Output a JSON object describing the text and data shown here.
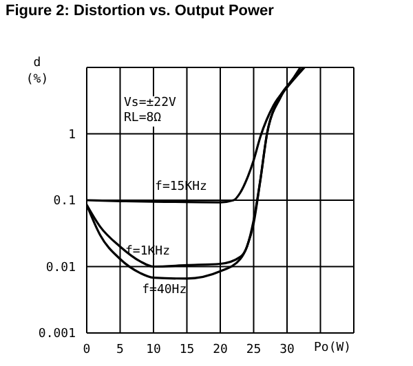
{
  "chart_data": {
    "type": "line",
    "title": "Figure 2: Distortion vs. Output Power",
    "xlabel": "Po(W)",
    "ylabel": "d (%)",
    "annotations": [
      "Vs=±22V",
      "RL=8Ω"
    ],
    "log": "y",
    "grid": true,
    "marker": "none",
    "line_style": "solid",
    "xlim": [
      0,
      40
    ],
    "xticks": [
      0,
      5,
      10,
      15,
      20,
      25,
      30,
      {
        "value": 35,
        "label": null
      }
    ],
    "ylim": [
      0.001,
      10
    ],
    "yticks": [
      0.001,
      0.01,
      0.1,
      1,
      {
        "value": 10,
        "label": null
      }
    ],
    "series": [
      {
        "name": "f=15KHz",
        "color": "#000000",
        "x": [
          0,
          5,
          10,
          15,
          20,
          22,
          23,
          24,
          25,
          26,
          28,
          30,
          32.6
        ],
        "values": [
          0.1,
          0.097,
          0.095,
          0.094,
          0.093,
          0.1,
          0.13,
          0.21,
          0.4,
          0.9,
          2.7,
          5,
          10
        ]
      },
      {
        "name": "f=1KHz",
        "color": "#000000",
        "x": [
          0,
          2,
          5,
          8,
          10,
          15,
          20,
          23,
          24,
          25,
          26,
          27,
          28.5,
          30.5,
          32.5
        ],
        "values": [
          0.085,
          0.04,
          0.02,
          0.012,
          0.01,
          0.0105,
          0.011,
          0.014,
          0.02,
          0.05,
          0.2,
          1,
          3,
          6,
          10
        ]
      },
      {
        "name": "f=40Hz",
        "color": "#000000",
        "x": [
          0,
          2,
          5,
          8,
          10,
          15,
          20,
          23,
          24,
          25,
          26,
          27,
          29,
          31,
          32
        ],
        "values": [
          0.085,
          0.03,
          0.013,
          0.008,
          0.0068,
          0.0066,
          0.0085,
          0.013,
          0.02,
          0.045,
          0.2,
          1,
          3.5,
          7,
          10
        ]
      }
    ]
  }
}
